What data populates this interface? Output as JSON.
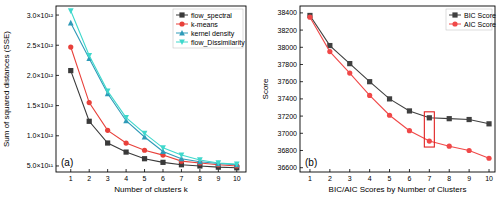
{
  "chart_data": [
    {
      "type": "line",
      "annotation": "(a)",
      "x_label": "Number of clusters k",
      "y_label": "Sum of squared distances (SSE)",
      "x": [
        1,
        2,
        3,
        4,
        5,
        6,
        7,
        8,
        9,
        10
      ],
      "xlim": [
        0.2,
        10.5
      ],
      "xticks": [
        1,
        2,
        3,
        4,
        5,
        6,
        7,
        8,
        9,
        10
      ],
      "ylim": [
        400000000000,
        3150000000000
      ],
      "yticks": [
        {
          "value": 500000000000,
          "label": "5.0×10¹¹"
        },
        {
          "value": 1000000000000,
          "label": "1.0×10¹²"
        },
        {
          "value": 1500000000000,
          "label": "1.5×10¹²"
        },
        {
          "value": 2000000000000,
          "label": "2.0×10¹²"
        },
        {
          "value": 2500000000000,
          "label": "2.5×10¹²"
        },
        {
          "value": 3000000000000,
          "label": "3.0×10¹²"
        }
      ],
      "grid": false,
      "legend": "upper right",
      "series": [
        {
          "name": "flow_spectral",
          "color": "#3a3a3a",
          "marker": "square",
          "values": [
            2080000000000,
            1240000000000,
            880000000000,
            730000000000,
            620000000000,
            560000000000,
            520000000000,
            500000000000,
            480000000000,
            470000000000
          ]
        },
        {
          "name": "k-means",
          "color": "#e8403a",
          "marker": "circle",
          "values": [
            2470000000000,
            1550000000000,
            1090000000000,
            880000000000,
            760000000000,
            680000000000,
            580000000000,
            550000000000,
            520000000000,
            500000000000
          ]
        },
        {
          "name": "kernel density",
          "color": "#2e9ab8",
          "marker": "triangle",
          "values": [
            2870000000000,
            2280000000000,
            1700000000000,
            1250000000000,
            980000000000,
            740000000000,
            620000000000,
            570000000000,
            540000000000,
            520000000000
          ]
        },
        {
          "name": "flow_Dissimilarity",
          "color": "#3fd8cc",
          "marker": "triangle-down",
          "values": [
            3070000000000,
            2330000000000,
            1740000000000,
            1300000000000,
            1040000000000,
            800000000000,
            680000000000,
            600000000000,
            550000000000,
            530000000000
          ]
        }
      ]
    },
    {
      "type": "line",
      "annotation": "(b)",
      "x_label": "BIC/AIC Scores by Number of Clusters",
      "y_label": "Score",
      "x": [
        1,
        2,
        3,
        4,
        5,
        6,
        7,
        8,
        9,
        10
      ],
      "xlim": [
        0.5,
        10.3
      ],
      "xticks": [
        1,
        2,
        3,
        4,
        5,
        6,
        7,
        8,
        9,
        10
      ],
      "ylim": [
        36550,
        38480
      ],
      "yticks": [
        36600,
        36800,
        37000,
        37200,
        37400,
        37600,
        37800,
        38000,
        38200,
        38400
      ],
      "grid": false,
      "legend": "upper right",
      "series": [
        {
          "name": "BIC Score",
          "color": "#404040",
          "marker": "square",
          "values": [
            38370,
            38020,
            37810,
            37600,
            37400,
            37260,
            37180,
            37170,
            37160,
            37110
          ]
        },
        {
          "name": "AIC Score",
          "color": "#f04848",
          "marker": "circle",
          "values": [
            38350,
            37950,
            37700,
            37440,
            37210,
            37030,
            36910,
            36850,
            36800,
            36710
          ]
        }
      ]
    }
  ]
}
